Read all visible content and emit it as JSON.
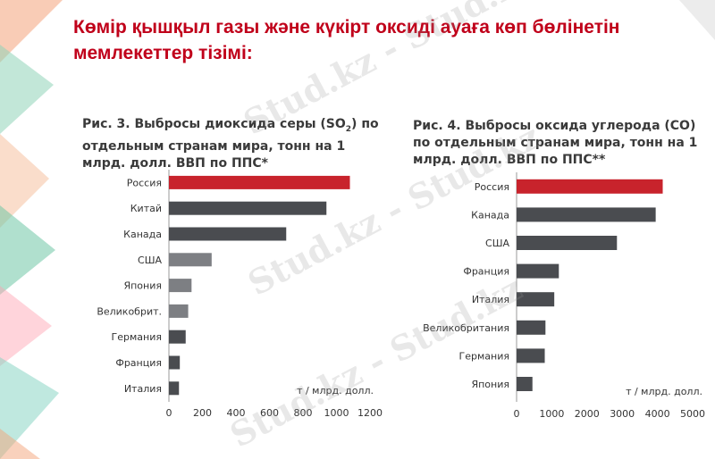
{
  "slide": {
    "title": "Көмір қышқыл газы және күкірт оксиді ауаға көп бөлінетін мемлекеттер тізімі:"
  },
  "watermark": "Stud.kz - Stud.kz",
  "colors": {
    "title": "#c0001a",
    "highlight_bar": "#c8232c",
    "dark_bar": "#4a4c50",
    "mid_bar": "#7d7f83",
    "text": "#3a3a3a"
  },
  "chart_data": [
    {
      "type": "bar",
      "orientation": "horizontal",
      "title_parts": [
        "Рис. 3. Выбросы диоксида серы (SO",
        "2",
        ") по отдельным странам мира, тонн на 1 млрд. долл. ВВП по ППС*"
      ],
      "categories": [
        "Россия",
        "Китай",
        "Канада",
        "США",
        "Япония",
        "Великобрит.",
        "Германия",
        "Франция",
        "Италия"
      ],
      "values": [
        1080,
        940,
        700,
        255,
        135,
        115,
        100,
        65,
        60
      ],
      "bar_colors": [
        "#c8232c",
        "#4a4c50",
        "#4a4c50",
        "#7d7f83",
        "#7d7f83",
        "#7d7f83",
        "#4a4c50",
        "#4a4c50",
        "#4a4c50"
      ],
      "xlabel": "т / млрд. долл.",
      "xlim": [
        0,
        1200
      ],
      "xticks": [
        0,
        200,
        400,
        600,
        800,
        1000,
        1200
      ]
    },
    {
      "type": "bar",
      "orientation": "horizontal",
      "title_parts": [
        "Рис. 4. Выбросы оксида углерода (CO) по отдельным странам мира, тонн на 1 млрд. долл. ВВП по ППС**"
      ],
      "categories": [
        "Россия",
        "Канада",
        "США",
        "Франция",
        "Италия",
        "Великобритания",
        "Германия",
        "Япония"
      ],
      "values": [
        4150,
        3950,
        2850,
        1200,
        1070,
        820,
        800,
        450
      ],
      "bar_colors": [
        "#c8232c",
        "#4a4c50",
        "#4a4c50",
        "#4a4c50",
        "#4a4c50",
        "#4a4c50",
        "#4a4c50",
        "#4a4c50"
      ],
      "xlabel": "т / млрд. долл.",
      "xlim": [
        0,
        5000
      ],
      "xticks": [
        0,
        1000,
        2000,
        3000,
        4000,
        5000
      ]
    }
  ]
}
